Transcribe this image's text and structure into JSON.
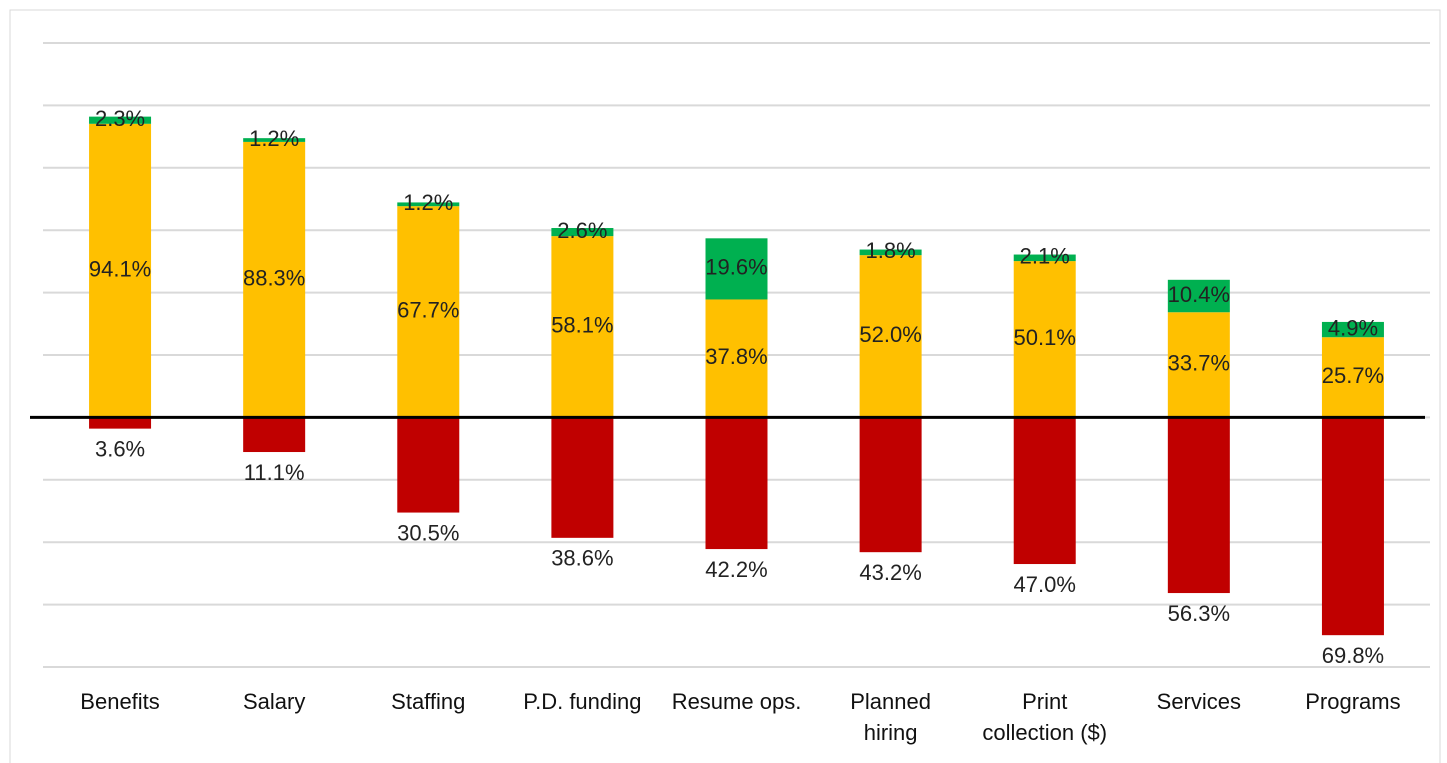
{
  "chart_data": {
    "type": "diverging-stacked-bar",
    "categories": [
      "Benefits",
      "Salary",
      "Staffing",
      "P.D. funding",
      "Resume ops.",
      "Planned\nhiring",
      "Print\ncollection ($)",
      "Services",
      "Programs"
    ],
    "series": [
      {
        "color": "#ffc000",
        "values": [
          94.1,
          88.3,
          67.7,
          58.1,
          37.8,
          52.0,
          50.1,
          33.7,
          25.7
        ],
        "value_labels": [
          "94.1%",
          "88.3%",
          "67.7%",
          "58.1%",
          "37.8%",
          "52.0%",
          "50.1%",
          "33.7%",
          "25.7%"
        ]
      },
      {
        "color": "#00b050",
        "values": [
          2.3,
          1.2,
          1.2,
          2.6,
          19.6,
          1.8,
          2.1,
          10.4,
          4.9
        ],
        "value_labels": [
          "2.3%",
          "1.2%",
          "1.2%",
          "2.6%",
          "19.6%",
          "1.8%",
          "2.1%",
          "10.4%",
          "4.9%"
        ]
      },
      {
        "color": "#c00000",
        "values": [
          -3.6,
          -11.1,
          -30.5,
          -38.6,
          -42.2,
          -43.2,
          -47.0,
          -56.3,
          -69.8
        ],
        "value_labels": [
          "3.6%",
          "11.1%",
          "30.5%",
          "38.6%",
          "42.2%",
          "43.2%",
          "47.0%",
          "56.3%",
          "69.8%"
        ]
      }
    ],
    "ylim": [
      -80,
      120
    ],
    "yticks": [
      -80,
      -60,
      -40,
      -20,
      0,
      20,
      40,
      60,
      80,
      100,
      120
    ],
    "grid": true
  }
}
